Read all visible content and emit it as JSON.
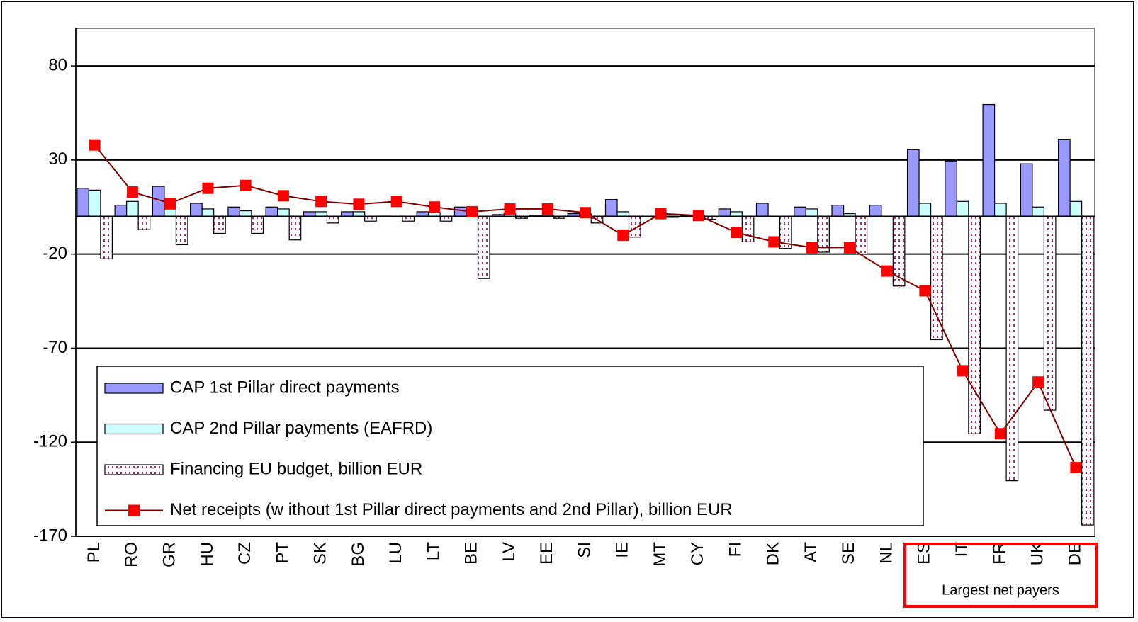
{
  "chart_data": {
    "type": "bar_line",
    "categories": [
      "PL",
      "RO",
      "GR",
      "HU",
      "CZ",
      "PT",
      "SK",
      "BG",
      "LU",
      "LT",
      "BE",
      "LV",
      "EE",
      "SI",
      "IE",
      "MT",
      "CY",
      "FI",
      "DK",
      "AT",
      "SE",
      "NL",
      "ES",
      "IT",
      "FR",
      "UK",
      "DE"
    ],
    "series": [
      {
        "name": "CAP 1st Pillar direct payments",
        "type": "bar",
        "color": "#9999ff",
        "values": [
          15,
          6,
          16,
          7,
          5,
          5,
          2.5,
          2.5,
          0.2,
          2.5,
          5,
          1,
          0.7,
          1.5,
          9,
          0,
          0.5,
          4,
          7,
          5,
          6,
          6,
          35.5,
          29.5,
          59.5,
          28,
          41
        ]
      },
      {
        "name": "CAP 2nd Pillar payments (EAFRD)",
        "type": "bar",
        "color": "#ccffff",
        "values": [
          14,
          8,
          4,
          4,
          3,
          4,
          2.5,
          2.5,
          0.1,
          2,
          2.5,
          1.5,
          0.7,
          1.5,
          2.5,
          0.1,
          0.5,
          2.5,
          0,
          4,
          1.5,
          0.1,
          7,
          8,
          7,
          5,
          8
        ]
      },
      {
        "name": "Financing EU budget, billion EUR",
        "type": "bar",
        "color": "#ffffff",
        "pattern_color": "#993366",
        "values": [
          -22.5,
          -7,
          -15,
          -9,
          -9,
          -12.5,
          -3.5,
          -2.5,
          -2.5,
          -2.5,
          -33,
          -1,
          -1,
          -3.5,
          -11,
          -0.5,
          -1.5,
          -13.5,
          -17,
          -19,
          -20,
          -37,
          -65.5,
          -115.5,
          -140.5,
          -103,
          -164
        ]
      },
      {
        "name": "Net receipts (w ithout 1st Pillar direct payments and 2nd Pillar), billion EUR",
        "type": "line",
        "color": "#800000",
        "marker_color": "#ff0000",
        "values": [
          38,
          13,
          7,
          15,
          16.5,
          11,
          8,
          6.5,
          8,
          5,
          2.5,
          4,
          4,
          2,
          -10,
          1.5,
          0.5,
          -8.5,
          -13.5,
          -16.5,
          -16.5,
          -29,
          -39.5,
          -82,
          -115.5,
          -88,
          -133.5
        ]
      }
    ],
    "ylim": [
      -170,
      100
    ],
    "yticks": [
      80,
      30,
      -20,
      -70,
      -120,
      -170
    ],
    "grid": true,
    "annotation": "Largest net payers"
  }
}
